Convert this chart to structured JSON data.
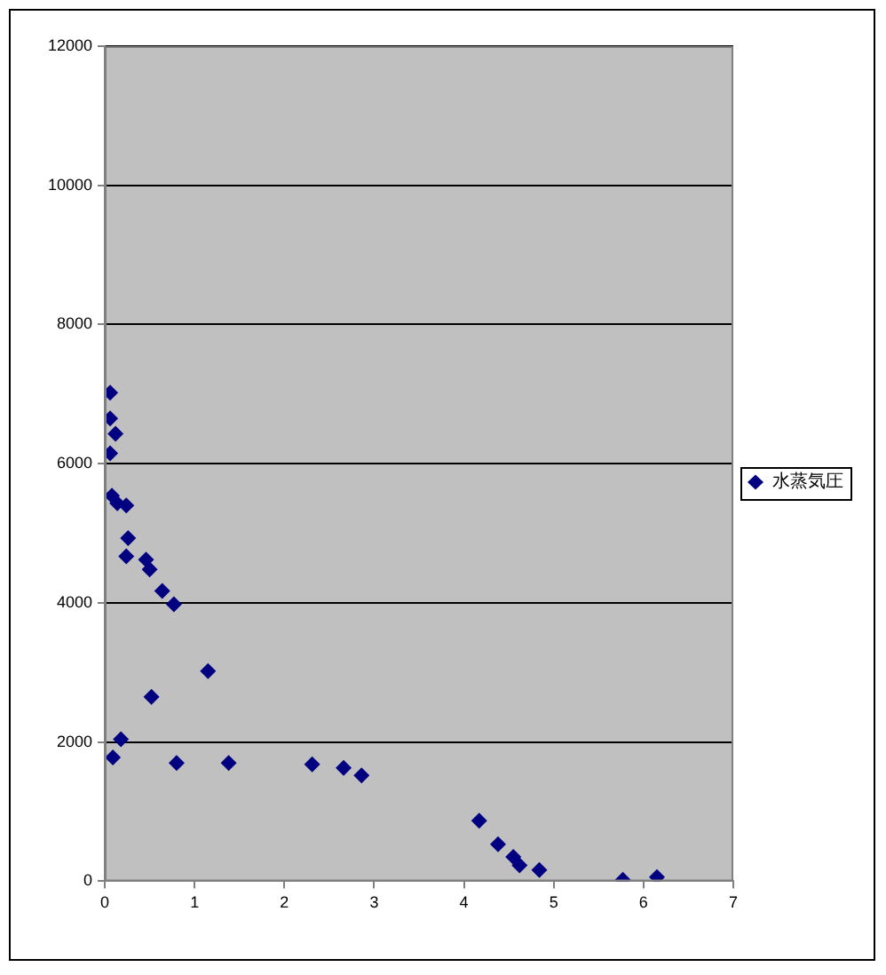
{
  "chart_data": {
    "type": "scatter",
    "xlim": [
      0,
      7
    ],
    "xticks": [
      0,
      1,
      2,
      3,
      4,
      5,
      6,
      7
    ],
    "ylim": [
      0,
      12000
    ],
    "yticks": [
      0,
      2000,
      4000,
      6000,
      8000,
      10000,
      12000
    ],
    "grid": "y",
    "legend": "right",
    "marker": "diamond",
    "series": [
      {
        "name": "水蒸気圧",
        "color": "#000080",
        "x": [
          0.06,
          0.06,
          0.12,
          0.06,
          0.08,
          0.14,
          0.24,
          0.26,
          0.24,
          0.46,
          0.5,
          0.64,
          0.77,
          1.15,
          0.52,
          0.18,
          0.09,
          0.8,
          1.38,
          2.31,
          2.66,
          2.86,
          4.17,
          4.38,
          4.55,
          4.62,
          4.84,
          5.77,
          6.15
        ],
        "values": [
          7020,
          6650,
          6430,
          6150,
          5540,
          5430,
          5400,
          4930,
          4670,
          4620,
          4480,
          4170,
          3980,
          3020,
          2650,
          2040,
          1780,
          1700,
          1700,
          1680,
          1630,
          1520,
          870,
          530,
          350,
          230,
          160,
          20,
          60
        ]
      }
    ]
  }
}
